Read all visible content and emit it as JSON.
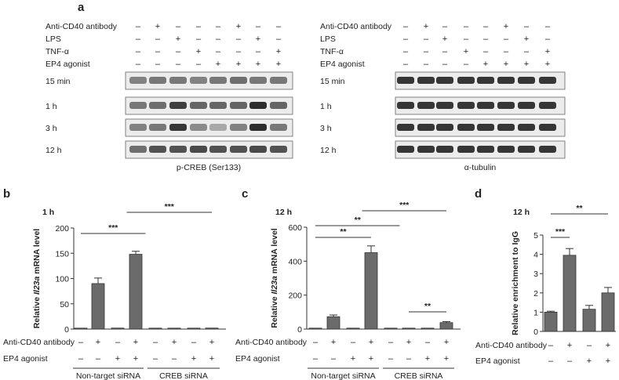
{
  "panel_a": {
    "label": "a",
    "row_labels": [
      "Anti-CD40 antibody",
      "LPS",
      "TNF-α",
      "EP4 agonist"
    ],
    "signs": [
      [
        "–",
        "+",
        "–",
        "–",
        "–",
        "+",
        "–",
        "–"
      ],
      [
        "–",
        "–",
        "+",
        "–",
        "–",
        "–",
        "+",
        "–"
      ],
      [
        "–",
        "–",
        "–",
        "+",
        "–",
        "–",
        "–",
        "+"
      ],
      [
        "–",
        "–",
        "–",
        "–",
        "+",
        "+",
        "+",
        "+"
      ]
    ],
    "time_labels": [
      "15 min",
      "1 h",
      "3 h",
      "12 h"
    ],
    "blot_left_caption": "p-CREB (Ser133)",
    "blot_right_caption": "α-tubulin",
    "band_intensity_left": [
      [
        0.45,
        0.5,
        0.5,
        0.45,
        0.5,
        0.55,
        0.5,
        0.5
      ],
      [
        0.5,
        0.55,
        0.8,
        0.6,
        0.6,
        0.6,
        0.9,
        0.6
      ],
      [
        0.45,
        0.5,
        0.85,
        0.4,
        0.25,
        0.45,
        0.9,
        0.5
      ],
      [
        0.55,
        0.7,
        0.7,
        0.75,
        0.7,
        0.7,
        0.75,
        0.7
      ]
    ],
    "band_intensity_right": [
      [
        0.85,
        0.85,
        0.85,
        0.85,
        0.85,
        0.85,
        0.85,
        0.85
      ],
      [
        0.85,
        0.85,
        0.85,
        0.85,
        0.85,
        0.85,
        0.85,
        0.85
      ],
      [
        0.85,
        0.85,
        0.85,
        0.85,
        0.85,
        0.85,
        0.85,
        0.85
      ],
      [
        0.85,
        0.85,
        0.85,
        0.85,
        0.85,
        0.85,
        0.85,
        0.85
      ]
    ]
  },
  "chart_data": [
    {
      "type": "bar",
      "panel": "b",
      "time": "1 h",
      "ylabel": "Relative Il23a mRNA level",
      "ylim": [
        0,
        200
      ],
      "yticks": [
        0,
        50,
        100,
        150,
        200
      ],
      "values": [
        1,
        90,
        2,
        148,
        1,
        1,
        1,
        2
      ],
      "errors": [
        0,
        11,
        0,
        6,
        0,
        0,
        0,
        0
      ],
      "row_labels": [
        "Anti-CD40 antibody",
        "EP4 agonist"
      ],
      "signs": [
        [
          "–",
          "+",
          "–",
          "+",
          "–",
          "+",
          "–",
          "+"
        ],
        [
          "–",
          "–",
          "+",
          "+",
          "–",
          "–",
          "+",
          "+"
        ]
      ],
      "groups": [
        "Non-target siRNA",
        "CREB siRNA"
      ],
      "significance": [
        {
          "from": 1,
          "to": 4.5,
          "label": "***"
        },
        {
          "from": 3.5,
          "to": 8,
          "label": "***"
        }
      ]
    },
    {
      "type": "bar",
      "panel": "c",
      "time": "12 h",
      "ylabel": "Relative Il23a mRNA level",
      "ylim": [
        0,
        600
      ],
      "yticks": [
        0,
        200,
        400,
        600
      ],
      "values": [
        0,
        73,
        0,
        450,
        0,
        4,
        0,
        38
      ],
      "errors": [
        0,
        10,
        0,
        40,
        0,
        0,
        0,
        6
      ],
      "row_labels": [
        "Anti-CD40 antibody",
        "EP4 agonist"
      ],
      "signs": [
        [
          "–",
          "+",
          "–",
          "+",
          "–",
          "+",
          "–",
          "+"
        ],
        [
          "–",
          "–",
          "+",
          "+",
          "–",
          "–",
          "+",
          "+"
        ]
      ],
      "groups": [
        "Non-target siRNA",
        "CREB siRNA"
      ],
      "significance": [
        {
          "from": 1,
          "to": 4,
          "label": "**"
        },
        {
          "from": 1,
          "to": 5.5,
          "label": "**"
        },
        {
          "from": 3.5,
          "to": 8,
          "label": "***"
        },
        {
          "from": 6,
          "to": 8,
          "label": "**"
        }
      ]
    },
    {
      "type": "bar",
      "panel": "d",
      "time": "12 h",
      "ylabel": "Relative enrichment to IgG",
      "ylim": [
        0,
        5
      ],
      "yticks": [
        0,
        1,
        2,
        3,
        4,
        5
      ],
      "values": [
        1.0,
        3.95,
        1.15,
        2.0
      ],
      "errors": [
        0.05,
        0.35,
        0.2,
        0.28
      ],
      "row_labels": [
        "Anti-CD40 antibody",
        "EP4 agonist"
      ],
      "signs": [
        [
          "–",
          "+",
          "–",
          "+"
        ],
        [
          "–",
          "–",
          "+",
          "+"
        ]
      ],
      "significance": [
        {
          "from": 1,
          "to": 2,
          "label": "***"
        },
        {
          "from": 1,
          "to": 4,
          "label": "**"
        }
      ]
    }
  ]
}
